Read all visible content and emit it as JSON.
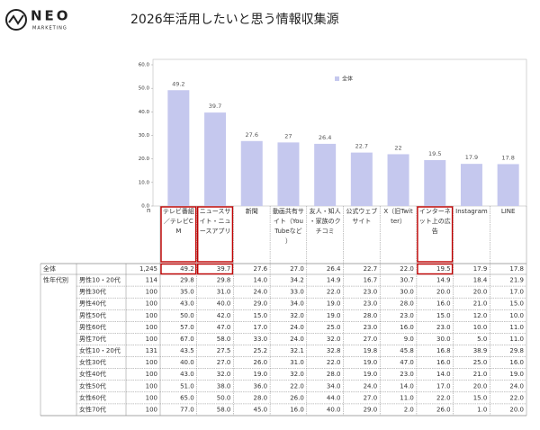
{
  "header": {
    "logo_name": "NEO",
    "logo_sub": "MARKETING"
  },
  "chart_data": {
    "type": "bar",
    "title": "2026年活用したいと思う情報収集源",
    "categories": [
      "テレビ番組／テレビCM",
      "ニュースサイト・ニュースアプリ",
      "新聞",
      "動画共有サイト（YouTubeなど）",
      "友人・知人・家族のクチコミ",
      "公式ウェブサイト",
      "X（旧Twitter）",
      "インターネット上の広告",
      "Instagram",
      "LINE"
    ],
    "series": [
      {
        "name": "全体",
        "color": "#c5c8ee",
        "values": [
          49.2,
          39.7,
          27.6,
          27.0,
          26.4,
          22.7,
          22.0,
          19.5,
          17.9,
          17.8
        ]
      }
    ],
    "ylim": [
      0,
      60
    ],
    "yticks": [
      {
        "value": 0,
        "label": "0.0"
      },
      {
        "value": 10,
        "label": "10.0"
      },
      {
        "value": 20,
        "label": "20.0"
      },
      {
        "value": 30,
        "label": "30.0"
      },
      {
        "value": 40,
        "label": "40.0"
      },
      {
        "value": 50,
        "label": "50.0"
      },
      {
        "value": 60,
        "label": "60.0"
      }
    ],
    "grid": false,
    "legend": "top"
  },
  "table": {
    "n_header": "n",
    "highlight_columns": [
      0,
      1,
      7
    ],
    "highlight_color": "#c00000",
    "rows": [
      {
        "label": "全体",
        "n": "1,245",
        "values": [
          "49.2",
          "39.7",
          "27.6",
          "27.0",
          "26.4",
          "22.7",
          "22.0",
          "19.5",
          "17.9",
          "17.8"
        ]
      },
      {
        "group": "性年代別",
        "label": "男性10・20代",
        "n": "114",
        "values": [
          "29.8",
          "29.8",
          "14.0",
          "34.2",
          "14.9",
          "16.7",
          "30.7",
          "14.9",
          "18.4",
          "21.9"
        ]
      },
      {
        "label": "男性30代",
        "n": "100",
        "values": [
          "35.0",
          "31.0",
          "24.0",
          "33.0",
          "22.0",
          "23.0",
          "30.0",
          "20.0",
          "20.0",
          "17.0"
        ]
      },
      {
        "label": "男性40代",
        "n": "100",
        "values": [
          "43.0",
          "40.0",
          "29.0",
          "34.0",
          "19.0",
          "23.0",
          "28.0",
          "16.0",
          "21.0",
          "15.0"
        ]
      },
      {
        "label": "男性50代",
        "n": "100",
        "values": [
          "50.0",
          "42.0",
          "15.0",
          "32.0",
          "19.0",
          "28.0",
          "23.0",
          "15.0",
          "12.0",
          "10.0"
        ]
      },
      {
        "label": "男性60代",
        "n": "100",
        "values": [
          "57.0",
          "47.0",
          "17.0",
          "24.0",
          "25.0",
          "23.0",
          "16.0",
          "23.0",
          "10.0",
          "11.0"
        ]
      },
      {
        "label": "男性70代",
        "n": "100",
        "values": [
          "67.0",
          "58.0",
          "33.0",
          "24.0",
          "32.0",
          "27.0",
          "9.0",
          "30.0",
          "5.0",
          "11.0"
        ]
      },
      {
        "label": "女性10・20代",
        "n": "131",
        "values": [
          "43.5",
          "27.5",
          "25.2",
          "32.1",
          "32.8",
          "19.8",
          "45.8",
          "16.8",
          "38.9",
          "29.8"
        ]
      },
      {
        "label": "女性30代",
        "n": "100",
        "values": [
          "40.0",
          "27.0",
          "26.0",
          "31.0",
          "22.0",
          "19.0",
          "47.0",
          "16.0",
          "25.0",
          "16.0"
        ]
      },
      {
        "label": "女性40代",
        "n": "100",
        "values": [
          "43.0",
          "32.0",
          "19.0",
          "32.0",
          "28.0",
          "19.0",
          "23.0",
          "14.0",
          "21.0",
          "19.0"
        ]
      },
      {
        "label": "女性50代",
        "n": "100",
        "values": [
          "51.0",
          "38.0",
          "36.0",
          "22.0",
          "34.0",
          "24.0",
          "14.0",
          "17.0",
          "20.0",
          "24.0"
        ]
      },
      {
        "label": "女性60代",
        "n": "100",
        "values": [
          "65.0",
          "50.0",
          "28.0",
          "26.0",
          "44.0",
          "27.0",
          "11.0",
          "22.0",
          "15.0",
          "22.0"
        ]
      },
      {
        "label": "女性70代",
        "n": "100",
        "values": [
          "77.0",
          "58.0",
          "45.0",
          "16.0",
          "40.0",
          "29.0",
          "2.0",
          "26.0",
          "1.0",
          "20.0"
        ]
      }
    ]
  }
}
